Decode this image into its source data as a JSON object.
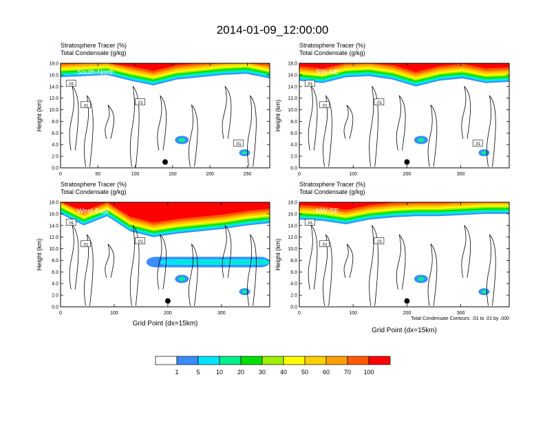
{
  "title": "2014-01-09_12:00:00",
  "panels": [
    {
      "label_line1": "Stratosphere Tracer   (%)",
      "label_line2": "Total Condensate   (g/kg)",
      "cross_section": "South-North",
      "ylabel": "Height (km)",
      "xlabel": "",
      "xticks": [
        "0",
        "50",
        "100",
        "150",
        "200",
        "250"
      ],
      "contour_labels": [
        ".01",
        ".01",
        ".01",
        ".01"
      ]
    },
    {
      "label_line1": "Stratosphere Tracer   (%)",
      "label_line2": "Total Condensate   (g/kg)",
      "cross_section": "SW-NE",
      "ylabel": "Height (km)",
      "xlabel": "",
      "xticks": [
        "0",
        "100",
        "200",
        "300"
      ],
      "contour_labels": [
        ".01",
        ".01",
        ".01",
        ".01"
      ]
    },
    {
      "label_line1": "Stratosphere Tracer   (%)",
      "label_line2": "Total Condensate   (g/kg)",
      "cross_section": "West-East",
      "ylabel": "Height (km)",
      "xlabel": "Grid Point (dx=15km)",
      "xticks": [
        "0",
        "100",
        "200",
        "300"
      ],
      "contour_labels": [
        ".01",
        ".01",
        ".01"
      ]
    },
    {
      "label_line1": "Stratosphere Tracer   (%)",
      "label_line2": "Total Condensate   (g/kg)",
      "cross_section": "NW-SE",
      "ylabel": "Height (km)",
      "xlabel": "Grid Point (dx=15km)",
      "xticks": [
        "0",
        "100",
        "200",
        "300"
      ],
      "contour_labels": [
        ".01",
        ".01",
        ".01"
      ],
      "footnote": "Total Condensate Contours: .01 to .01 by .000"
    }
  ],
  "yticks": [
    "0.0",
    "2.0",
    "4.0",
    "6.0",
    "8.0",
    "10.0",
    "12.0",
    "14.0",
    "16.0",
    "18.0"
  ],
  "colorbar": {
    "labels": [
      "1",
      "5",
      "10",
      "20",
      "30",
      "40",
      "50",
      "60",
      "70",
      "100"
    ],
    "colors": [
      "#ffffff",
      "#3a8cff",
      "#00e5ff",
      "#00f090",
      "#00e000",
      "#a0f000",
      "#ffff00",
      "#ffd000",
      "#ffa000",
      "#ff5a00",
      "#ff0000"
    ]
  },
  "chart_data": [
    {
      "type": "contour",
      "panel": "South-North",
      "x_range": [
        0,
        280
      ],
      "ylim": [
        0,
        18
      ],
      "tracer_top_km": 18,
      "tracer_layer_bottom_km": [
        15.6,
        15.8,
        16.0,
        15.0,
        14.2,
        15.2,
        15.6,
        16.0,
        16.2,
        15.4
      ],
      "condensate_contour": 0.01,
      "marker": {
        "x": 140,
        "y_km": 1.0
      }
    },
    {
      "type": "contour",
      "panel": "SW-NE",
      "x_range": [
        0,
        390
      ],
      "ylim": [
        0,
        18
      ],
      "tracer_layer_bottom_km": [
        15.0,
        14.6,
        15.6,
        15.8,
        15.2,
        14.0,
        15.0,
        15.4,
        14.6,
        14.8
      ],
      "condensate_contour": 0.01,
      "marker": {
        "x": 200,
        "y_km": 1.0
      }
    },
    {
      "type": "contour",
      "panel": "West-East",
      "x_range": [
        0,
        390
      ],
      "ylim": [
        0,
        18
      ],
      "tracer_layer_bottom_km": [
        16.0,
        14.0,
        15.6,
        13.0,
        12.0,
        12.6,
        13.0,
        13.4,
        14.0,
        14.4
      ],
      "intrusion_layer_km": [
        6.8,
        8.6
      ],
      "condensate_contour": 0.01,
      "marker": {
        "x": 200,
        "y_km": 1.0
      }
    },
    {
      "type": "contour",
      "panel": "NW-SE",
      "x_range": [
        0,
        390
      ],
      "ylim": [
        0,
        18
      ],
      "tracer_layer_bottom_km": [
        15.0,
        14.8,
        14.2,
        15.0,
        15.4,
        15.6,
        15.6,
        15.8,
        16.0,
        16.0
      ],
      "condensate_contour": 0.01,
      "marker": {
        "x": 200,
        "y_km": 1.0
      }
    }
  ]
}
